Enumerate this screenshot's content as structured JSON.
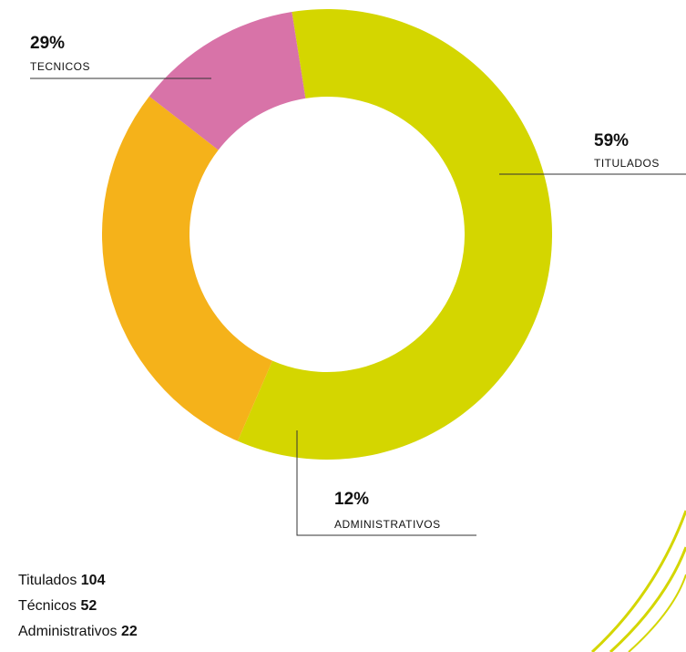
{
  "chart_data": {
    "type": "pie",
    "categories": [
      "TITULADOS",
      "TECNICOS",
      "ADMINISTRATIVOS"
    ],
    "values": [
      59,
      29,
      12
    ],
    "value_labels": [
      "59%",
      "29%",
      "12%"
    ],
    "colors": [
      "#d4d600",
      "#f5b21a",
      "#d873a8"
    ]
  },
  "summary": [
    {
      "label": "Titulados",
      "count": 104
    },
    {
      "label": "Técnicos",
      "count": 52
    },
    {
      "label": "Administrativos",
      "count": 22
    }
  ]
}
